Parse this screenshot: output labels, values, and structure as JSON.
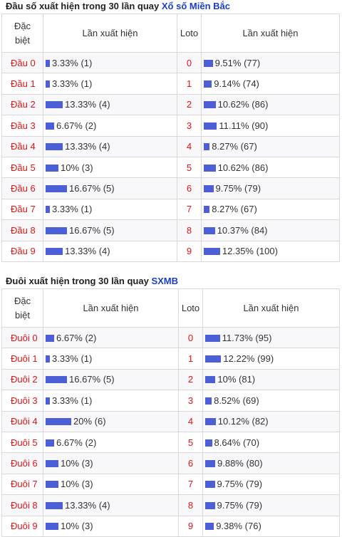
{
  "dau": {
    "title_prefix": "Đầu số xuất hiện trong 30 lần quay",
    "title_link": "Xổ số Miền Bắc",
    "headers": [
      "Đặc biệt",
      "Lần xuất hiện",
      "Loto",
      "Lần xuất hiện"
    ],
    "rows": [
      {
        "label": "Đầu 0",
        "db_text": "3.33% (1)",
        "db_pct": 3.33,
        "loto": "0",
        "lo_text": "9.51% (77)",
        "lo_pct": 9.51
      },
      {
        "label": "Đầu 1",
        "db_text": "3.33% (1)",
        "db_pct": 3.33,
        "loto": "1",
        "lo_text": "9.14% (74)",
        "lo_pct": 9.14
      },
      {
        "label": "Đầu 2",
        "db_text": "13.33% (4)",
        "db_pct": 13.33,
        "loto": "2",
        "lo_text": "10.62% (86)",
        "lo_pct": 10.62
      },
      {
        "label": "Đầu 3",
        "db_text": "6.67% (2)",
        "db_pct": 6.67,
        "loto": "3",
        "lo_text": "11.11% (90)",
        "lo_pct": 11.11
      },
      {
        "label": "Đầu 4",
        "db_text": "13.33% (4)",
        "db_pct": 13.33,
        "loto": "4",
        "lo_text": "8.27% (67)",
        "lo_pct": 8.27
      },
      {
        "label": "Đầu 5",
        "db_text": "10% (3)",
        "db_pct": 10,
        "loto": "5",
        "lo_text": "10.62% (86)",
        "lo_pct": 10.62
      },
      {
        "label": "Đầu 6",
        "db_text": "16.67% (5)",
        "db_pct": 16.67,
        "loto": "6",
        "lo_text": "9.75% (79)",
        "lo_pct": 9.75
      },
      {
        "label": "Đầu 7",
        "db_text": "3.33% (1)",
        "db_pct": 3.33,
        "loto": "7",
        "lo_text": "8.27% (67)",
        "lo_pct": 8.27
      },
      {
        "label": "Đầu 8",
        "db_text": "16.67% (5)",
        "db_pct": 16.67,
        "loto": "8",
        "lo_text": "10.37% (84)",
        "lo_pct": 10.37
      },
      {
        "label": "Đầu 9",
        "db_text": "13.33% (4)",
        "db_pct": 13.33,
        "loto": "9",
        "lo_text": "12.35% (100)",
        "lo_pct": 12.35
      }
    ]
  },
  "duoi": {
    "title_prefix": "Đuôi xuất hiện trong 30 lần quay",
    "title_link": "SXMB",
    "headers": [
      "Đặc biệt",
      "Lần xuất hiện",
      "Loto",
      "Lần xuất hiện"
    ],
    "rows": [
      {
        "label": "Đuôi 0",
        "db_text": "6.67% (2)",
        "db_pct": 6.67,
        "loto": "0",
        "lo_text": "11.73% (95)",
        "lo_pct": 11.73
      },
      {
        "label": "Đuôi 1",
        "db_text": "3.33% (1)",
        "db_pct": 3.33,
        "loto": "1",
        "lo_text": "12.22% (99)",
        "lo_pct": 12.22
      },
      {
        "label": "Đuôi 2",
        "db_text": "16.67% (5)",
        "db_pct": 16.67,
        "loto": "2",
        "lo_text": "10% (81)",
        "lo_pct": 10
      },
      {
        "label": "Đuôi 3",
        "db_text": "3.33% (1)",
        "db_pct": 3.33,
        "loto": "3",
        "lo_text": "8.52% (69)",
        "lo_pct": 8.52
      },
      {
        "label": "Đuôi 4",
        "db_text": "20% (6)",
        "db_pct": 20,
        "loto": "4",
        "lo_text": "10.12% (82)",
        "lo_pct": 10.12
      },
      {
        "label": "Đuôi 5",
        "db_text": "6.67% (2)",
        "db_pct": 6.67,
        "loto": "5",
        "lo_text": "8.64% (70)",
        "lo_pct": 8.64
      },
      {
        "label": "Đuôi 6",
        "db_text": "10% (3)",
        "db_pct": 10,
        "loto": "6",
        "lo_text": "9.88% (80)",
        "lo_pct": 9.88
      },
      {
        "label": "Đuôi 7",
        "db_text": "10% (3)",
        "db_pct": 10,
        "loto": "7",
        "lo_text": "9.75% (79)",
        "lo_pct": 9.75
      },
      {
        "label": "Đuôi 8",
        "db_text": "13.33% (4)",
        "db_pct": 13.33,
        "loto": "8",
        "lo_text": "9.75% (79)",
        "lo_pct": 9.75
      },
      {
        "label": "Đuôi 9",
        "db_text": "10% (3)",
        "db_pct": 10,
        "loto": "9",
        "lo_text": "9.38% (76)",
        "lo_pct": 9.38
      }
    ]
  },
  "colors": {
    "bar": "#4c5fd6",
    "label_red": "#e01414",
    "link_blue": "#1a3fc4"
  }
}
